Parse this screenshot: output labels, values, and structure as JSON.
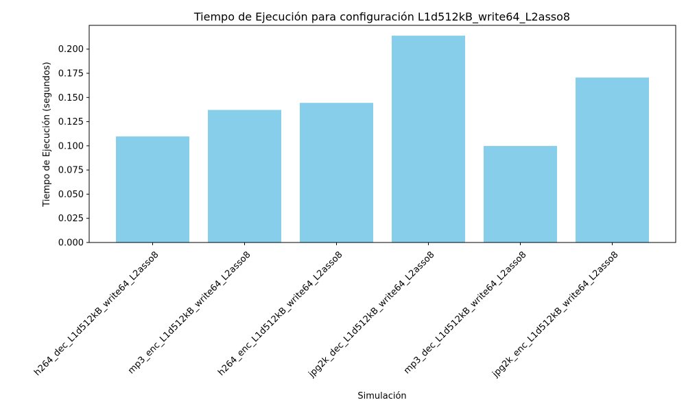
{
  "chart_data": {
    "type": "bar",
    "title": "Tiempo de Ejecución para configuración L1d512kB_write64_L2asso8",
    "xlabel": "Simulación",
    "ylabel": "Tiempo de Ejecución (segundos)",
    "categories": [
      "h264_dec_L1d512kB_write64_L2asso8",
      "mp3_enc_L1d512kB_write64_L2asso8",
      "h264_enc_L1d512kB_write64_L2asso8",
      "jpg2k_dec_L1d512kB_write64_L2asso8",
      "mp3_dec_L1d512kB_write64_L2asso8",
      "jpg2k_enc_L1d512kB_write64_L2asso8"
    ],
    "values": [
      0.1097,
      0.1371,
      0.1444,
      0.2139,
      0.0998,
      0.1706
    ],
    "ylim": [
      0,
      0.2246
    ],
    "yticks": [
      "0.000",
      "0.025",
      "0.050",
      "0.075",
      "0.100",
      "0.125",
      "0.150",
      "0.175",
      "0.200"
    ],
    "bar_color": "#87ceeb",
    "grid": false,
    "legend": "none"
  }
}
